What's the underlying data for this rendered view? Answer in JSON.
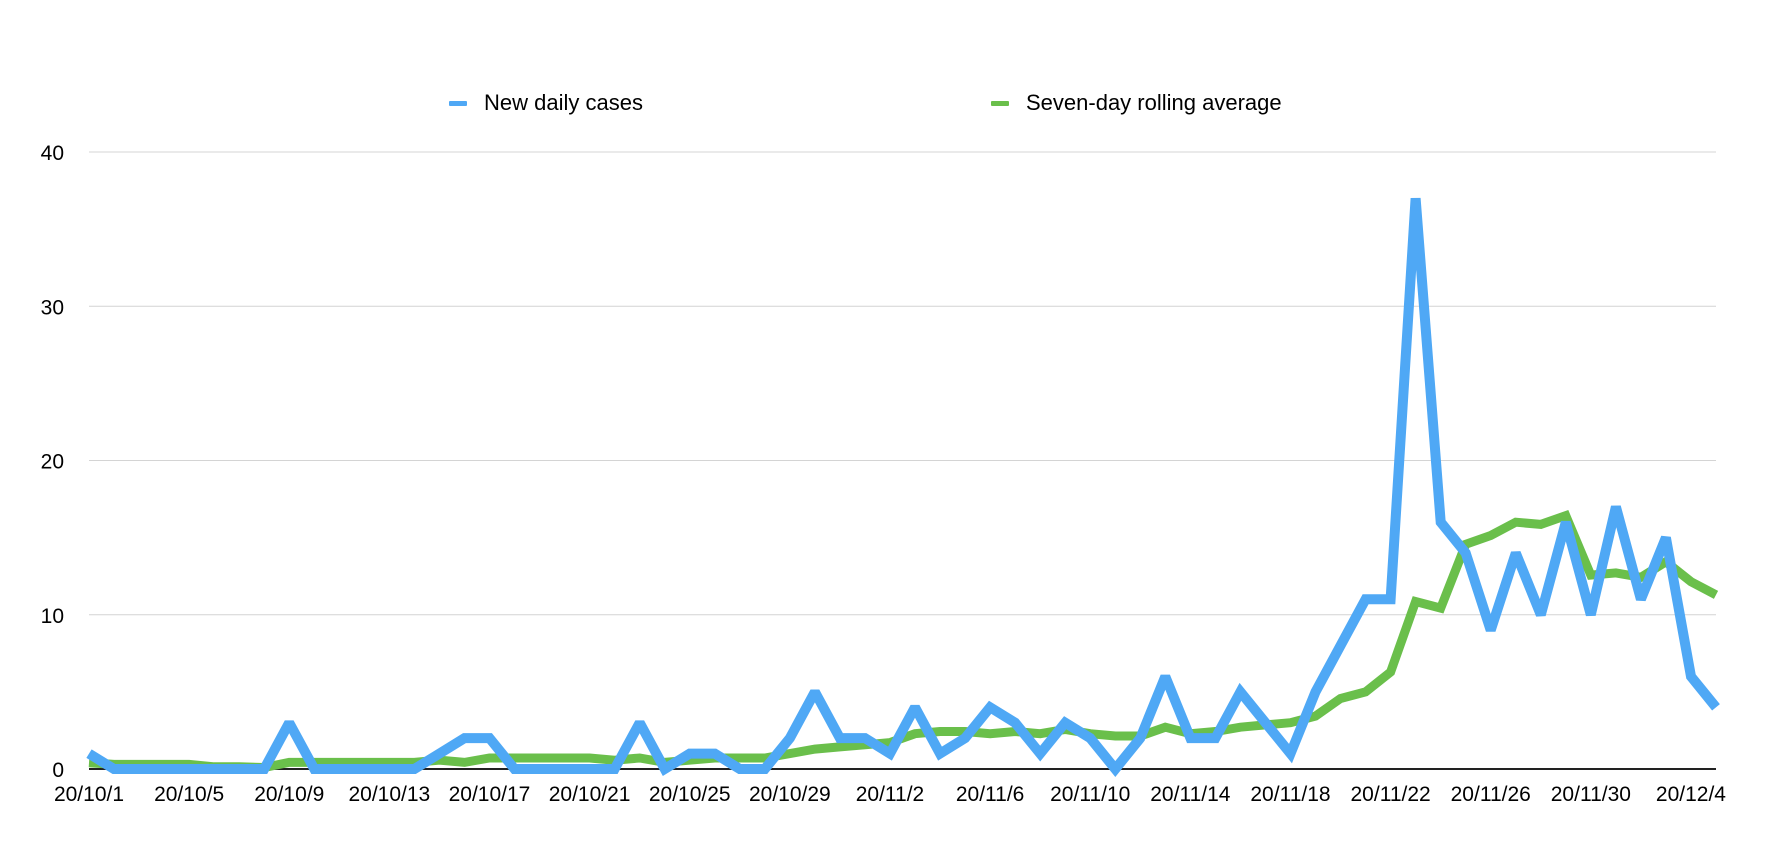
{
  "chart_data": {
    "type": "line",
    "title": "",
    "xlabel": "",
    "ylabel": "",
    "ylim": [
      0,
      40
    ],
    "y_ticks": [
      0,
      10,
      20,
      30,
      40
    ],
    "grid": true,
    "legend_position": "top-center",
    "x": [
      "20/10/1",
      "20/10/2",
      "20/10/3",
      "20/10/4",
      "20/10/5",
      "20/10/6",
      "20/10/7",
      "20/10/8",
      "20/10/9",
      "20/10/10",
      "20/10/11",
      "20/10/12",
      "20/10/13",
      "20/10/14",
      "20/10/15",
      "20/10/16",
      "20/10/17",
      "20/10/18",
      "20/10/19",
      "20/10/20",
      "20/10/21",
      "20/10/22",
      "20/10/23",
      "20/10/24",
      "20/10/25",
      "20/10/26",
      "20/10/27",
      "20/10/28",
      "20/10/29",
      "20/10/30",
      "20/10/31",
      "20/11/1",
      "20/11/2",
      "20/11/3",
      "20/11/4",
      "20/11/5",
      "20/11/6",
      "20/11/7",
      "20/11/8",
      "20/11/9",
      "20/11/10",
      "20/11/11",
      "20/11/12",
      "20/11/13",
      "20/11/14",
      "20/11/15",
      "20/11/16",
      "20/11/17",
      "20/11/18",
      "20/11/19",
      "20/11/20",
      "20/11/21",
      "20/11/22",
      "20/11/23",
      "20/11/24",
      "20/11/25",
      "20/11/26",
      "20/11/27",
      "20/11/28",
      "20/11/29",
      "20/11/30",
      "20/12/1",
      "20/12/2",
      "20/12/3",
      "20/12/4",
      "20/12/5"
    ],
    "x_tick_labels": [
      "20/10/1",
      "20/10/5",
      "20/10/9",
      "20/10/13",
      "20/10/17",
      "20/10/21",
      "20/10/25",
      "20/10/29",
      "20/11/2",
      "20/11/6",
      "20/11/10",
      "20/11/14",
      "20/11/18",
      "20/11/22",
      "20/11/26",
      "20/11/30",
      "20/12/4"
    ],
    "x_tick_every": 4,
    "series": [
      {
        "name": "New daily cases",
        "color": "#4fa8f5",
        "values": [
          1,
          0,
          0,
          0,
          0,
          0,
          0,
          0,
          3,
          0,
          0,
          0,
          0,
          0,
          1,
          2,
          2,
          0,
          0,
          0,
          0,
          0,
          3,
          0,
          1,
          1,
          0,
          0,
          2,
          5,
          2,
          2,
          1,
          4,
          1,
          2,
          4,
          3,
          1,
          3,
          2,
          0,
          2,
          6,
          2,
          2,
          5,
          3,
          1,
          5,
          8,
          11,
          11,
          37,
          16,
          14,
          9,
          14,
          10,
          16,
          10,
          17,
          11,
          15,
          6,
          4
        ]
      },
      {
        "name": "Seven-day rolling average",
        "color": "#6abf4b",
        "values": [
          0.4,
          0.3,
          0.3,
          0.3,
          0.3,
          0.14,
          0.14,
          0.1,
          0.43,
          0.43,
          0.43,
          0.43,
          0.43,
          0.43,
          0.57,
          0.43,
          0.71,
          0.71,
          0.71,
          0.71,
          0.71,
          0.57,
          0.71,
          0.43,
          0.57,
          0.71,
          0.71,
          0.71,
          1.0,
          1.29,
          1.43,
          1.57,
          1.71,
          2.29,
          2.43,
          2.43,
          2.29,
          2.43,
          2.29,
          2.57,
          2.29,
          2.14,
          2.14,
          2.71,
          2.29,
          2.43,
          2.71,
          2.86,
          3.0,
          3.43,
          4.57,
          5.0,
          6.29,
          10.86,
          10.43,
          14.57,
          15.14,
          16.0,
          15.86,
          16.43,
          12.57,
          12.71,
          12.43,
          13.43,
          12.14,
          11.29
        ]
      }
    ]
  }
}
